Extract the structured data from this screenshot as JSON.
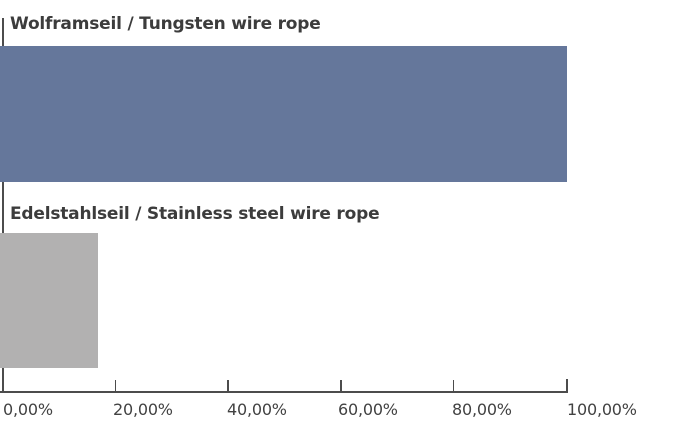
{
  "chart_data": {
    "type": "bar",
    "orientation": "horizontal",
    "title": "",
    "xlabel": "",
    "ylabel": "",
    "categories": [
      "Wolframseil / Tungsten wire rope",
      "Edelstahlseil / Stainless steel wire rope"
    ],
    "values": [
      100,
      17
    ],
    "value_unit": "%",
    "xlim": [
      0,
      100
    ],
    "x_tick_values": [
      0,
      20,
      40,
      60,
      80,
      100
    ],
    "x_tick_labels": [
      "0,00%",
      "20,00%",
      "40,00%",
      "60,00%",
      "80,00%",
      "100,00%"
    ],
    "grid": false,
    "legend_position": "none",
    "bar_colors": [
      "#65779B",
      "#B2B1B1"
    ],
    "axis_color": "#4C4C4C",
    "category_label_color": "#3C3C3C",
    "tick_label_color": "#424242",
    "background_color": "#FFFFFF"
  }
}
